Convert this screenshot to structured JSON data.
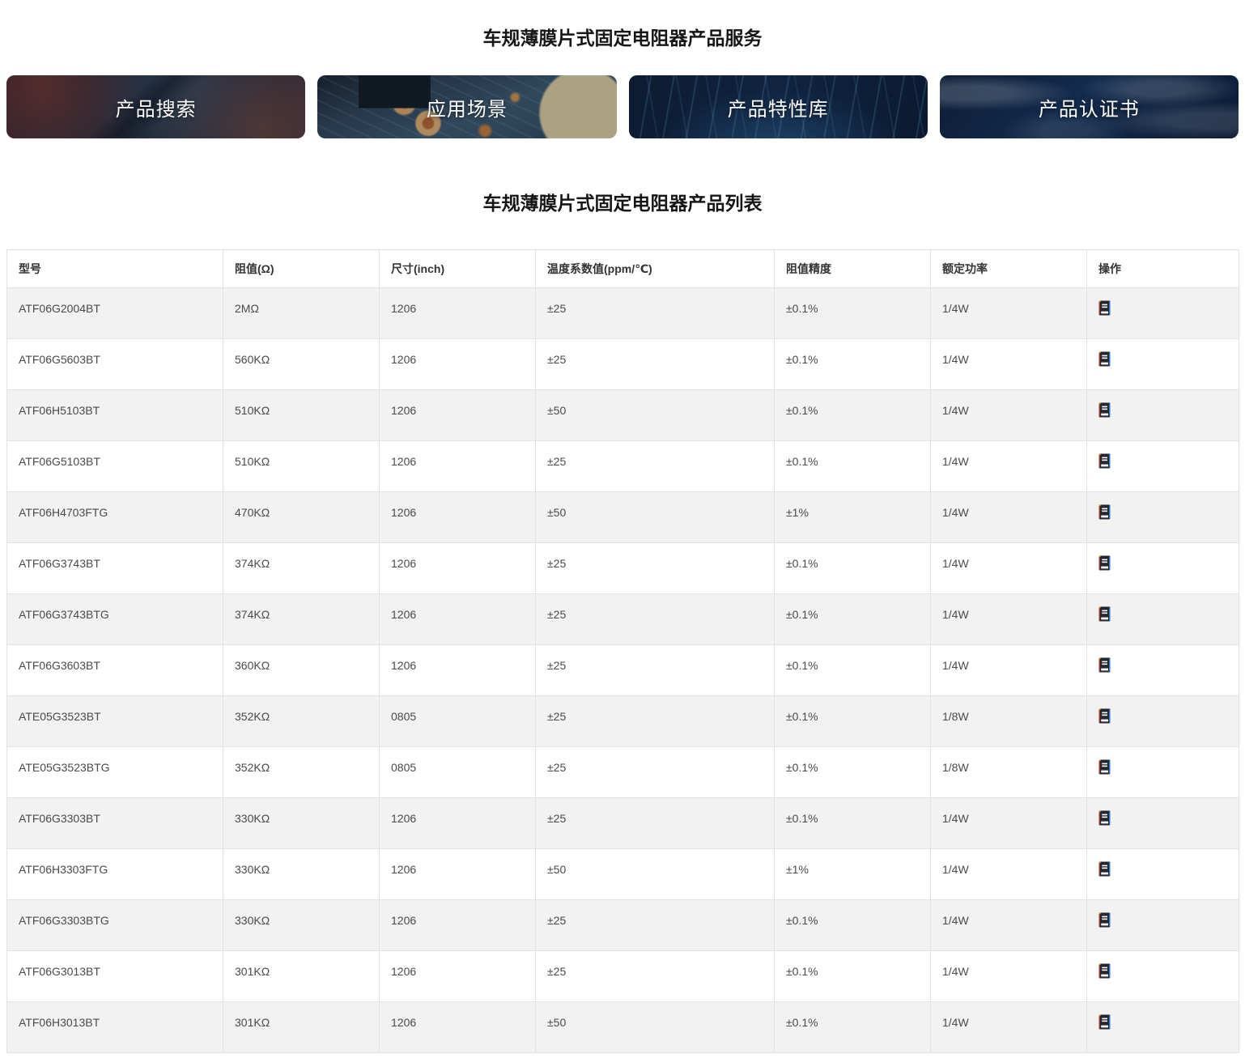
{
  "page": {
    "service_title": "车规薄膜片式固定电阻器产品服务",
    "list_title": "车规薄膜片式固定电阻器产品列表"
  },
  "banners": [
    {
      "label": "产品搜索",
      "icon": "circuit-board-dark-photo"
    },
    {
      "label": "应用场景",
      "icon": "circuit-board-blue-photo"
    },
    {
      "label": "产品特性库",
      "icon": "data-stream-lines-photo"
    },
    {
      "label": "产品认证书",
      "icon": "world-map-photo"
    }
  ],
  "table": {
    "columns": [
      "型号",
      "阻值(Ω)",
      "尺寸(inch)",
      "温度系数值(ppm/℃)",
      "阻值精度",
      "额定功率",
      "操作"
    ],
    "action_icon": "datasheet-icon",
    "rows": [
      {
        "model": "ATF06G2004BT",
        "resistance": "2MΩ",
        "size": "1206",
        "tcr": "±25",
        "tolerance": "±0.1%",
        "power": "1/4W"
      },
      {
        "model": "ATF06G5603BT",
        "resistance": "560KΩ",
        "size": "1206",
        "tcr": "±25",
        "tolerance": "±0.1%",
        "power": "1/4W"
      },
      {
        "model": "ATF06H5103BT",
        "resistance": "510KΩ",
        "size": "1206",
        "tcr": "±50",
        "tolerance": "±0.1%",
        "power": "1/4W"
      },
      {
        "model": "ATF06G5103BT",
        "resistance": "510KΩ",
        "size": "1206",
        "tcr": "±25",
        "tolerance": "±0.1%",
        "power": "1/4W"
      },
      {
        "model": "ATF06H4703FTG",
        "resistance": "470KΩ",
        "size": "1206",
        "tcr": "±50",
        "tolerance": "±1%",
        "power": "1/4W"
      },
      {
        "model": "ATF06G3743BT",
        "resistance": "374KΩ",
        "size": "1206",
        "tcr": "±25",
        "tolerance": "±0.1%",
        "power": "1/4W"
      },
      {
        "model": "ATF06G3743BTG",
        "resistance": "374KΩ",
        "size": "1206",
        "tcr": "±25",
        "tolerance": "±0.1%",
        "power": "1/4W"
      },
      {
        "model": "ATF06G3603BT",
        "resistance": "360KΩ",
        "size": "1206",
        "tcr": "±25",
        "tolerance": "±0.1%",
        "power": "1/4W"
      },
      {
        "model": "ATE05G3523BT",
        "resistance": "352KΩ",
        "size": "0805",
        "tcr": "±25",
        "tolerance": "±0.1%",
        "power": "1/8W"
      },
      {
        "model": "ATE05G3523BTG",
        "resistance": "352KΩ",
        "size": "0805",
        "tcr": "±25",
        "tolerance": "±0.1%",
        "power": "1/8W"
      },
      {
        "model": "ATF06G3303BT",
        "resistance": "330KΩ",
        "size": "1206",
        "tcr": "±25",
        "tolerance": "±0.1%",
        "power": "1/4W"
      },
      {
        "model": "ATF06H3303FTG",
        "resistance": "330KΩ",
        "size": "1206",
        "tcr": "±50",
        "tolerance": "±1%",
        "power": "1/4W"
      },
      {
        "model": "ATF06G3303BTG",
        "resistance": "330KΩ",
        "size": "1206",
        "tcr": "±25",
        "tolerance": "±0.1%",
        "power": "1/4W"
      },
      {
        "model": "ATF06G3013BT",
        "resistance": "301KΩ",
        "size": "1206",
        "tcr": "±25",
        "tolerance": "±0.1%",
        "power": "1/4W"
      },
      {
        "model": "ATF06H3013BT",
        "resistance": "301KΩ",
        "size": "1206",
        "tcr": "±50",
        "tolerance": "±0.1%",
        "power": "1/4W"
      }
    ]
  },
  "colors": {
    "zebra_row": "#f2f2f2",
    "table_border": "#e2e2e2",
    "title_text": "#161616",
    "cell_text": "#4a4a4a",
    "icon_body": "#23272f",
    "icon_left_edge": "#b23b2e",
    "icon_right_edge": "#2f7fd4",
    "icon_corner": "#d9a52a"
  }
}
